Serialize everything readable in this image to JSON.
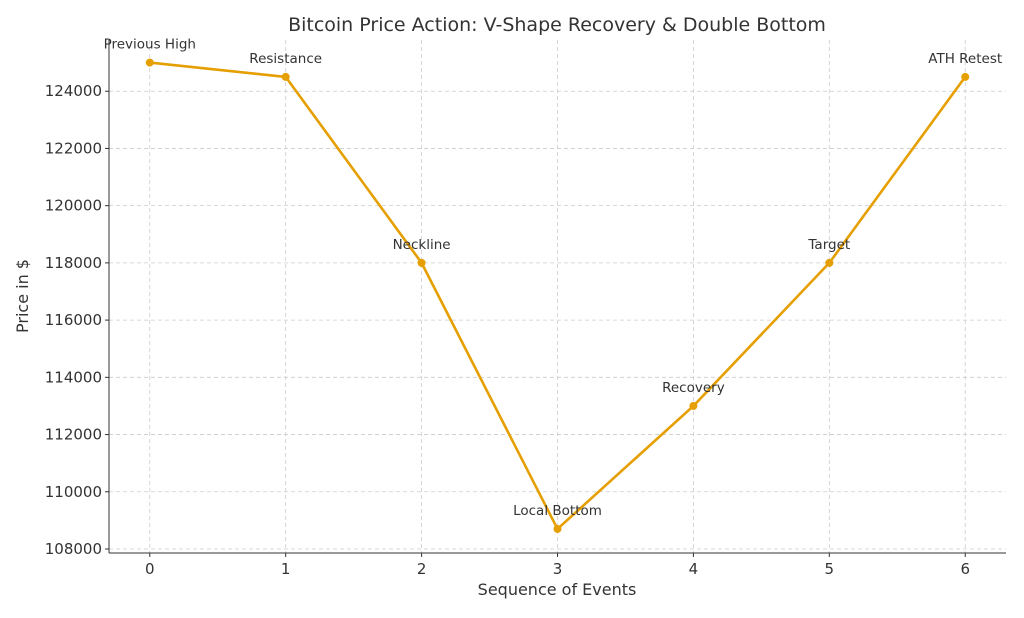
{
  "chart_data": {
    "type": "line",
    "title": "Bitcoin Price Action: V-Shape Recovery & Double Bottom",
    "xlabel": "Sequence of Events",
    "ylabel": "Price in $",
    "x": [
      0,
      1,
      2,
      3,
      4,
      5,
      6
    ],
    "values": [
      125000,
      124500,
      118000,
      108700,
      113000,
      118000,
      124500
    ],
    "annotations": [
      "Previous High",
      "Resistance",
      "Neckline",
      "Local Bottom",
      "Recovery",
      "Target",
      "ATH Retest"
    ],
    "xticks": [
      0,
      1,
      2,
      3,
      4,
      5,
      6
    ],
    "yticks": [
      108000,
      110000,
      112000,
      114000,
      116000,
      118000,
      120000,
      122000,
      124000
    ],
    "xlim": [
      -0.3,
      6.3
    ],
    "ylim": [
      107860,
      125790
    ],
    "grid": true,
    "line_color": "#E69F00"
  }
}
